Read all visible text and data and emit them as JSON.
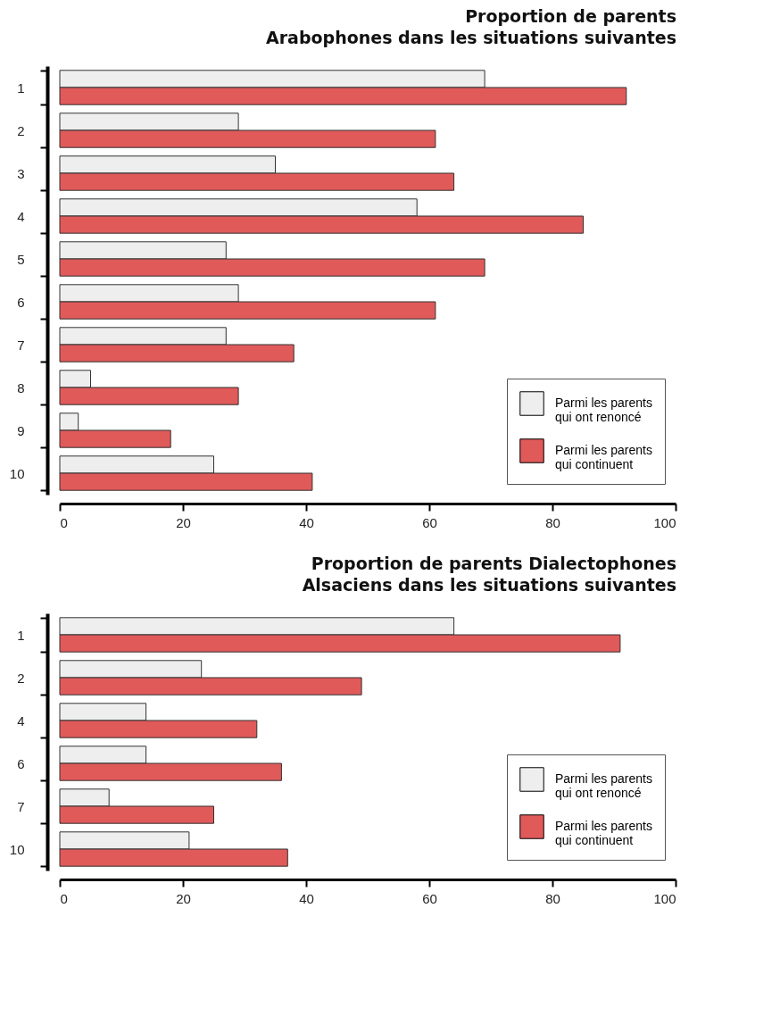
{
  "chart_data": [
    {
      "type": "bar",
      "orientation": "horizontal",
      "title": "Proportion de parents Arabophones dans les situations suivantes",
      "categories": [
        "1",
        "2",
        "3",
        "4",
        "5",
        "6",
        "7",
        "8",
        "9",
        "10"
      ],
      "series": [
        {
          "name": "Parmi les parents qui ont renoncé",
          "color": "#eeeeee",
          "values": [
            69,
            29,
            35,
            58,
            27,
            29,
            27,
            5,
            3,
            25
          ]
        },
        {
          "name": "Parmi les parents qui continuent",
          "color": "#e05a5a",
          "values": [
            92,
            61,
            64,
            85,
            69,
            61,
            38,
            29,
            18,
            41
          ]
        }
      ],
      "xlim": [
        0,
        100
      ],
      "xticks": [
        0,
        20,
        40,
        60,
        80,
        100
      ],
      "grid": false,
      "legend": "bottom right"
    },
    {
      "type": "bar",
      "orientation": "horizontal",
      "title": "Proportion de parents Dialectophones Alsaciens dans les situations suivantes",
      "categories": [
        "1",
        "2",
        "4",
        "6",
        "7",
        "10"
      ],
      "series": [
        {
          "name": "Parmi les parents qui ont renoncé",
          "color": "#eeeeee",
          "values": [
            64,
            23,
            14,
            14,
            8,
            21
          ]
        },
        {
          "name": "Parmi les parents qui continuent",
          "color": "#e05a5a",
          "values": [
            91,
            49,
            32,
            36,
            25,
            37
          ]
        }
      ],
      "xlim": [
        0,
        100
      ],
      "xticks": [
        0,
        20,
        40,
        60,
        80,
        100
      ],
      "grid": false,
      "legend": "bottom right"
    }
  ]
}
